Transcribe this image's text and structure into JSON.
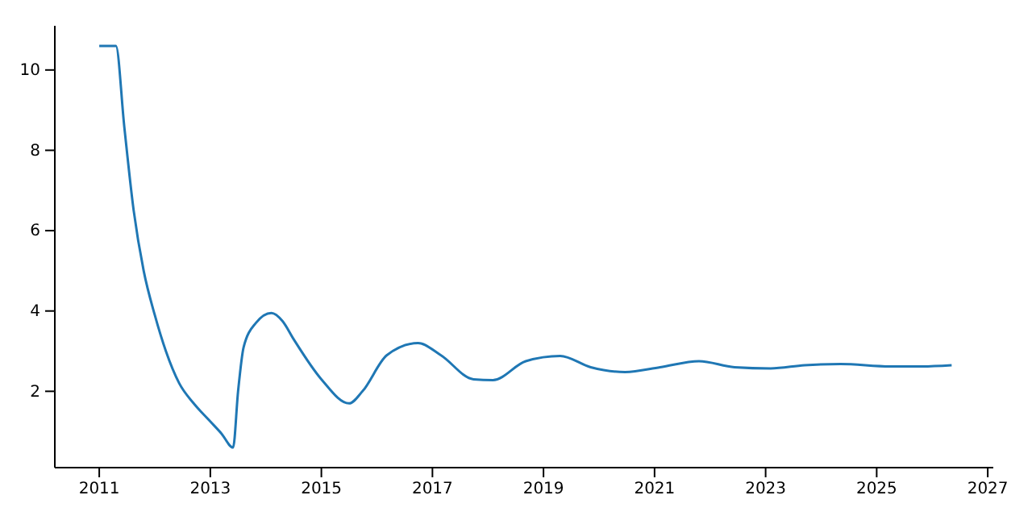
{
  "chart_data": {
    "type": "line",
    "xlim": [
      2010.2,
      2027.1
    ],
    "ylim": [
      0.1,
      11.1
    ],
    "xticks": [
      2011,
      2013,
      2015,
      2017,
      2019,
      2021,
      2023,
      2025,
      2027
    ],
    "yticks": [
      2,
      4,
      6,
      8,
      10
    ],
    "grid": false,
    "series": [
      {
        "color": "#1f77b4",
        "x": [
          2011.0,
          2011.3,
          2011.45,
          2011.62,
          2011.8,
          2012.0,
          2012.2,
          2012.44,
          2012.7,
          2013.0,
          2013.2,
          2013.41,
          2013.5,
          2013.6,
          2013.82,
          2014.1,
          2014.3,
          2014.5,
          2015.0,
          2015.5,
          2015.74,
          2016.18,
          2016.74,
          2017.15,
          2017.74,
          2018.09,
          2018.68,
          2019.3,
          2019.85,
          2020.47,
          2021.1,
          2021.8,
          2022.44,
          2023.09,
          2023.7,
          2024.35,
          2025.24,
          2025.82,
          2026.35
        ],
        "values": [
          10.6,
          10.6,
          8.6,
          6.5,
          5.0,
          3.9,
          3.0,
          2.2,
          1.7,
          1.25,
          0.95,
          0.6,
          2.0,
          3.1,
          3.7,
          3.95,
          3.75,
          3.3,
          2.3,
          1.7,
          2.0,
          2.9,
          3.2,
          2.9,
          2.3,
          2.28,
          2.75,
          2.88,
          2.6,
          2.48,
          2.6,
          2.75,
          2.6,
          2.57,
          2.65,
          2.68,
          2.62,
          2.62,
          2.65
        ]
      }
    ]
  }
}
